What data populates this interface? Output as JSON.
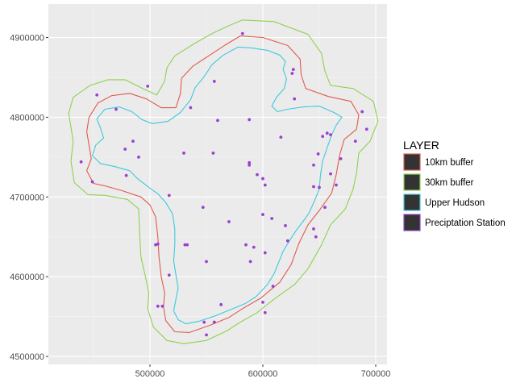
{
  "chart_data": {
    "type": "map",
    "title": "",
    "xlabel": "",
    "ylabel": "",
    "xlim": [
      410000,
      710000
    ],
    "ylim": [
      4490000,
      4942000
    ],
    "x_ticks": [
      500000,
      600000,
      700000
    ],
    "x_tick_labels": [
      "500000",
      "600000",
      "700000"
    ],
    "y_ticks": [
      4500000,
      4600000,
      4700000,
      4800000,
      4900000
    ],
    "y_tick_labels": [
      "4500000",
      "4600000",
      "4700000",
      "4800000",
      "4900000"
    ],
    "grid": true,
    "legend": {
      "title": "LAYER",
      "position": "right",
      "entries": [
        {
          "label": "10km buffer",
          "color": "#e05a4f"
        },
        {
          "label": "30km buffer",
          "color": "#8fd14f"
        },
        {
          "label": "Upper Hudson",
          "color": "#3fc8dc"
        },
        {
          "label": "Preciptation Station",
          "color": "#9b3fd0"
        }
      ]
    },
    "layers": [
      {
        "name": "30km buffer",
        "color": "#8fd14f",
        "points": [
          [
            582000,
            4922000
          ],
          [
            610000,
            4920000
          ],
          [
            640000,
            4904000
          ],
          [
            652000,
            4880000
          ],
          [
            655000,
            4858000
          ],
          [
            660000,
            4840000
          ],
          [
            680000,
            4836000
          ],
          [
            698000,
            4820000
          ],
          [
            702000,
            4795000
          ],
          [
            695000,
            4770000
          ],
          [
            685000,
            4755000
          ],
          [
            683000,
            4730000
          ],
          [
            680000,
            4710000
          ],
          [
            673000,
            4685000
          ],
          [
            660000,
            4665000
          ],
          [
            652000,
            4640000
          ],
          [
            640000,
            4610000
          ],
          [
            628000,
            4590000
          ],
          [
            610000,
            4572000
          ],
          [
            595000,
            4555000
          ],
          [
            580000,
            4543000
          ],
          [
            568000,
            4532000
          ],
          [
            550000,
            4520000
          ],
          [
            530000,
            4516000
          ],
          [
            515000,
            4520000
          ],
          [
            503000,
            4537000
          ],
          [
            498000,
            4560000
          ],
          [
            499000,
            4580000
          ],
          [
            496000,
            4600000
          ],
          [
            492000,
            4625000
          ],
          [
            491000,
            4650000
          ],
          [
            490000,
            4685000
          ],
          [
            480000,
            4697000
          ],
          [
            460000,
            4702000
          ],
          [
            445000,
            4703000
          ],
          [
            433000,
            4718000
          ],
          [
            430000,
            4745000
          ],
          [
            432000,
            4770000
          ],
          [
            428000,
            4805000
          ],
          [
            432000,
            4825000
          ],
          [
            447000,
            4840000
          ],
          [
            463000,
            4847000
          ],
          [
            478000,
            4847000
          ],
          [
            495000,
            4835000
          ],
          [
            506000,
            4828000
          ],
          [
            513000,
            4845000
          ],
          [
            515000,
            4862000
          ],
          [
            522000,
            4877000
          ],
          [
            540000,
            4893000
          ],
          [
            555000,
            4905000
          ],
          [
            570000,
            4915000
          ],
          [
            582000,
            4922000
          ]
        ]
      },
      {
        "name": "10km buffer",
        "color": "#e05a4f",
        "points": [
          [
            580000,
            4902000
          ],
          [
            600000,
            4900000
          ],
          [
            622000,
            4890000
          ],
          [
            633000,
            4873000
          ],
          [
            634000,
            4853000
          ],
          [
            638000,
            4836000
          ],
          [
            658000,
            4826000
          ],
          [
            678000,
            4820000
          ],
          [
            685000,
            4803000
          ],
          [
            683000,
            4785000
          ],
          [
            672000,
            4772000
          ],
          [
            668000,
            4752000
          ],
          [
            665000,
            4728000
          ],
          [
            661000,
            4705000
          ],
          [
            650000,
            4683000
          ],
          [
            640000,
            4665000
          ],
          [
            632000,
            4642000
          ],
          [
            625000,
            4615000
          ],
          [
            615000,
            4593000
          ],
          [
            598000,
            4573000
          ],
          [
            582000,
            4560000
          ],
          [
            570000,
            4549000
          ],
          [
            553000,
            4539000
          ],
          [
            535000,
            4530000
          ],
          [
            522000,
            4531000
          ],
          [
            514000,
            4545000
          ],
          [
            512000,
            4562000
          ],
          [
            513000,
            4580000
          ],
          [
            510000,
            4600000
          ],
          [
            508000,
            4625000
          ],
          [
            507000,
            4650000
          ],
          [
            505000,
            4675000
          ],
          [
            500000,
            4690000
          ],
          [
            492000,
            4700000
          ],
          [
            475000,
            4708000
          ],
          [
            460000,
            4714000
          ],
          [
            450000,
            4717000
          ],
          [
            444000,
            4733000
          ],
          [
            448000,
            4748000
          ],
          [
            446000,
            4765000
          ],
          [
            444000,
            4782000
          ],
          [
            446000,
            4800000
          ],
          [
            454000,
            4818000
          ],
          [
            466000,
            4827000
          ],
          [
            482000,
            4830000
          ],
          [
            497000,
            4823000
          ],
          [
            510000,
            4812000
          ],
          [
            523000,
            4812000
          ],
          [
            527000,
            4830000
          ],
          [
            528000,
            4849000
          ],
          [
            538000,
            4864000
          ],
          [
            552000,
            4877000
          ],
          [
            566000,
            4890000
          ],
          [
            580000,
            4902000
          ]
        ]
      },
      {
        "name": "Upper Hudson",
        "color": "#3fc8dc",
        "points": [
          [
            578000,
            4888000
          ],
          [
            590000,
            4887000
          ],
          [
            604000,
            4884000
          ],
          [
            615000,
            4878000
          ],
          [
            620000,
            4870000
          ],
          [
            618000,
            4860000
          ],
          [
            621000,
            4848000
          ],
          [
            619000,
            4836000
          ],
          [
            612000,
            4825000
          ],
          [
            608000,
            4814000
          ],
          [
            613000,
            4807000
          ],
          [
            622000,
            4810000
          ],
          [
            636000,
            4813000
          ],
          [
            650000,
            4814000
          ],
          [
            663000,
            4806000
          ],
          [
            670000,
            4800000
          ],
          [
            665000,
            4790000
          ],
          [
            661000,
            4778000
          ],
          [
            657000,
            4762000
          ],
          [
            653000,
            4745000
          ],
          [
            651000,
            4727000
          ],
          [
            650000,
            4710000
          ],
          [
            646000,
            4696000
          ],
          [
            641000,
            4680000
          ],
          [
            636000,
            4670000
          ],
          [
            630000,
            4659000
          ],
          [
            624000,
            4646000
          ],
          [
            618000,
            4632000
          ],
          [
            614000,
            4618000
          ],
          [
            610000,
            4604000
          ],
          [
            604000,
            4590000
          ],
          [
            594000,
            4575000
          ],
          [
            584000,
            4566000
          ],
          [
            570000,
            4558000
          ],
          [
            558000,
            4551000
          ],
          [
            543000,
            4544000
          ],
          [
            532000,
            4541000
          ],
          [
            525000,
            4546000
          ],
          [
            521000,
            4557000
          ],
          [
            523000,
            4572000
          ],
          [
            525000,
            4586000
          ],
          [
            523000,
            4602000
          ],
          [
            521000,
            4620000
          ],
          [
            522000,
            4640000
          ],
          [
            522000,
            4660000
          ],
          [
            520000,
            4679000
          ],
          [
            514000,
            4693000
          ],
          [
            507000,
            4704000
          ],
          [
            500000,
            4711000
          ],
          [
            489000,
            4723000
          ],
          [
            482000,
            4733000
          ],
          [
            469000,
            4738000
          ],
          [
            456000,
            4742000
          ],
          [
            449000,
            4752000
          ],
          [
            452000,
            4765000
          ],
          [
            459000,
            4774000
          ],
          [
            456000,
            4787000
          ],
          [
            453000,
            4798000
          ],
          [
            460000,
            4810000
          ],
          [
            473000,
            4813000
          ],
          [
            484000,
            4807000
          ],
          [
            493000,
            4797000
          ],
          [
            502000,
            4792000
          ],
          [
            516000,
            4795000
          ],
          [
            527000,
            4806000
          ],
          [
            536000,
            4822000
          ],
          [
            540000,
            4837000
          ],
          [
            548000,
            4851000
          ],
          [
            555000,
            4866000
          ],
          [
            565000,
            4878000
          ],
          [
            578000,
            4888000
          ]
        ]
      },
      {
        "name": "Preciptation Station",
        "color": "#9b3fd0",
        "points": [
          [
            582000,
            4905000
          ],
          [
            627000,
            4860000
          ],
          [
            626000,
            4855000
          ],
          [
            498000,
            4839000
          ],
          [
            557000,
            4845000
          ],
          [
            453000,
            4828000
          ],
          [
            628000,
            4823000
          ],
          [
            536000,
            4812000
          ],
          [
            470000,
            4810000
          ],
          [
            688000,
            4807000
          ],
          [
            692000,
            4785000
          ],
          [
            560000,
            4796000
          ],
          [
            588000,
            4797000
          ],
          [
            485000,
            4770000
          ],
          [
            682000,
            4770000
          ],
          [
            616000,
            4775000
          ],
          [
            653000,
            4776000
          ],
          [
            657000,
            4780000
          ],
          [
            660000,
            4778000
          ],
          [
            669000,
            4748000
          ],
          [
            439000,
            4744000
          ],
          [
            478000,
            4760000
          ],
          [
            530000,
            4755000
          ],
          [
            556000,
            4755000
          ],
          [
            649000,
            4754000
          ],
          [
            490000,
            4750000
          ],
          [
            588000,
            4743000
          ],
          [
            588000,
            4740000
          ],
          [
            645000,
            4740000
          ],
          [
            479000,
            4727000
          ],
          [
            595000,
            4728000
          ],
          [
            600000,
            4723000
          ],
          [
            602000,
            4715000
          ],
          [
            660000,
            4729000
          ],
          [
            665000,
            4715000
          ],
          [
            645000,
            4713000
          ],
          [
            449000,
            4719000
          ],
          [
            517000,
            4702000
          ],
          [
            650000,
            4712000
          ],
          [
            547000,
            4687000
          ],
          [
            655000,
            4687000
          ],
          [
            600000,
            4678000
          ],
          [
            608000,
            4673000
          ],
          [
            570000,
            4669000
          ],
          [
            620000,
            4664000
          ],
          [
            507000,
            4641000
          ],
          [
            505000,
            4640000
          ],
          [
            531000,
            4640000
          ],
          [
            533000,
            4640000
          ],
          [
            622000,
            4645000
          ],
          [
            645000,
            4660000
          ],
          [
            647000,
            4650000
          ],
          [
            585000,
            4640000
          ],
          [
            592000,
            4637000
          ],
          [
            602000,
            4630000
          ],
          [
            550000,
            4619000
          ],
          [
            589000,
            4619000
          ],
          [
            517000,
            4602000
          ],
          [
            609000,
            4588000
          ],
          [
            511000,
            4563000
          ],
          [
            507000,
            4563000
          ],
          [
            563000,
            4565000
          ],
          [
            600000,
            4568000
          ],
          [
            602000,
            4555000
          ],
          [
            548000,
            4543000
          ],
          [
            550000,
            4527000
          ],
          [
            557000,
            4543000
          ]
        ]
      }
    ]
  }
}
